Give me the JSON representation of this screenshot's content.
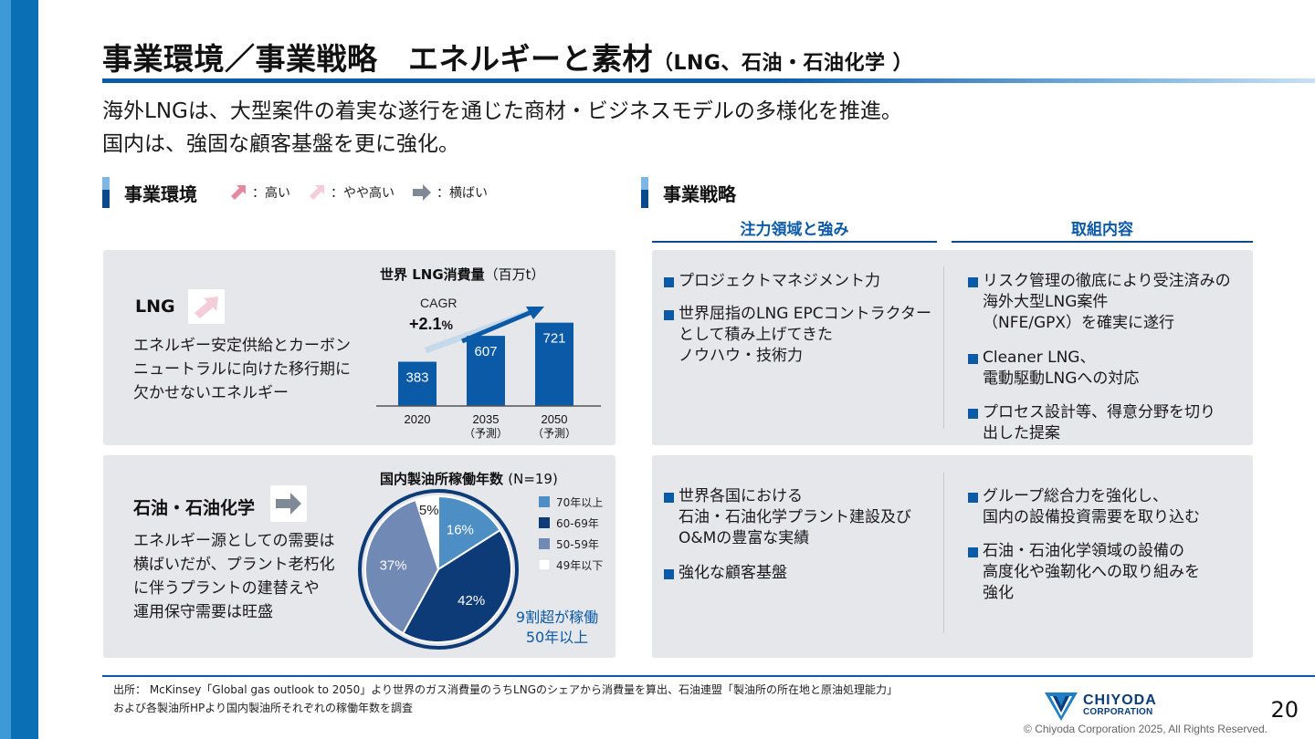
{
  "title": "事業環境／事業戦略　エネルギーと素材",
  "title_sub": "（LNG、石油・石油化学 ）",
  "lead": [
    "海外LNGは、大型案件の着実な遂行を通じた商材・ビジネスモデルの多様化を推進。",
    "国内は、強固な顧客基盤を更に強化。"
  ],
  "env_section": {
    "label": "事業環境",
    "legend": [
      {
        "icon": "arrow-up-right-icon",
        "color": "#e8889f",
        "label": "：高い"
      },
      {
        "icon": "arrow-up-right-icon",
        "color": "#f5cdd8",
        "label": "：やや高い"
      },
      {
        "icon": "arrow-right-icon",
        "color": "#7f8a96",
        "label": "：横ばい"
      }
    ]
  },
  "strategy_section": {
    "label": "事業戦略",
    "col1_head": "注力領域と強み",
    "col2_head": "取組内容"
  },
  "lng": {
    "title": "LNG",
    "trend_icon": "arrow-up-right-icon",
    "trend_color": "#f5cdd8",
    "text": [
      "エネルギー安定供給とカーボン",
      "ニュートラルに向けた移行期に",
      "欠かせないエネルギー"
    ],
    "strengths": [
      [
        "プロジェクトマネジメント力"
      ],
      [
        "世界屈指のLNG EPCコントラクター",
        "として積み上げてきた",
        "ノウハウ・技術力"
      ]
    ],
    "actions": [
      [
        "リスク管理の徹底により受注済みの",
        "海外大型LNG案件",
        "（NFE/GPX）を確実に遂行"
      ],
      [
        "Cleaner LNG、",
        "電動駆動LNGへの対応"
      ],
      [
        "プロセス設計等、得意分野を切り",
        "出した提案"
      ]
    ]
  },
  "oil": {
    "title": "石油・石油化学",
    "trend_icon": "arrow-right-icon",
    "trend_color": "#7f8a96",
    "text": [
      "エネルギー源としての需要は",
      "横ばいだが、プラント老朽化",
      "に伴うプラントの建替えや",
      "運用保守需要は旺盛"
    ],
    "strengths": [
      [
        "世界各国における",
        "石油・石油化学プラント建設及び",
        "O&Mの豊富な実績"
      ],
      [
        "強化な顧客基盤"
      ]
    ],
    "actions": [
      [
        "グループ総合力を強化し、",
        "国内の設備投資需要を取り込む"
      ],
      [
        "石油・石油化学領域の設備の",
        "高度化や強靭化への取り組みを",
        "強化"
      ]
    ]
  },
  "chart_data": [
    {
      "type": "bar",
      "title": "世界 LNG消費量",
      "unit": "（百万t）",
      "categories": [
        "2020",
        "2035",
        "2050"
      ],
      "category_notes": [
        "",
        "（予測）",
        "（予測）"
      ],
      "values": [
        383,
        607,
        721
      ],
      "color": "#0a5aa8",
      "annotation_label": "CAGR",
      "annotation_value": "+2.1",
      "annotation_unit": "%"
    },
    {
      "type": "pie",
      "title": "国内製油所稼働年数",
      "subtitle": "(N=19)",
      "labels": [
        "70年以上",
        "60-69年",
        "50-59年",
        "49年以下"
      ],
      "values": [
        16,
        42,
        37,
        5
      ],
      "colors": [
        "#4d8fc4",
        "#0d3b78",
        "#7189b5",
        "#ffffff"
      ],
      "callout": [
        "9割超が稼働",
        "50年以上"
      ]
    }
  ],
  "footer": {
    "source_lines": [
      "出所：  McKinsey「Global gas outlook to 2050」より世界のガス消費量のうちLNGのシェアから消費量を算出、石油連盟「製油所の所在地と原油処理能力」",
      "および各製油所HPより国内製油所それぞれの稼働年数を調査"
    ],
    "logo_line1": "CHIYODA",
    "logo_line2": "CORPORATION",
    "page_number": "20",
    "copyright": "© Chiyoda Corporation 2025, All Rights Reserved."
  }
}
